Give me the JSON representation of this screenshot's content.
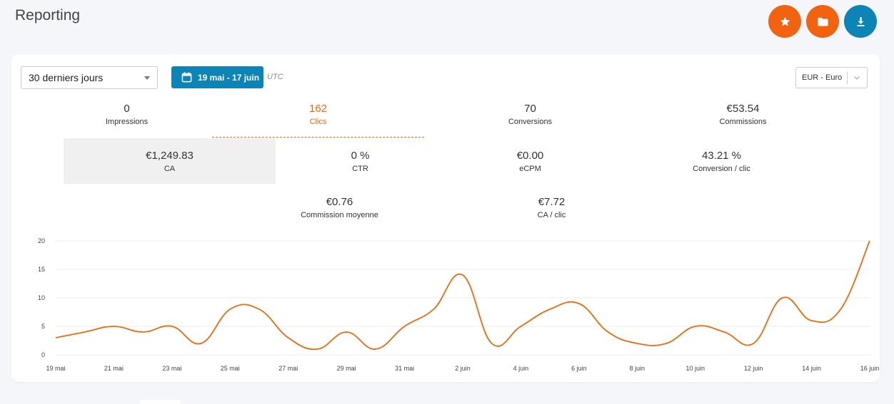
{
  "header": {
    "title": "Reporting"
  },
  "actions": [
    {
      "name": "favorite-button",
      "icon": "star-icon",
      "color": "#f26311"
    },
    {
      "name": "folder-button",
      "icon": "folder-icon",
      "color": "#f26311"
    },
    {
      "name": "download-button",
      "icon": "download-icon",
      "color": "#0c84b5"
    }
  ],
  "filters": {
    "period": "30 derniers jours",
    "date_range": "19 mai - 17 juin",
    "timezone": "UTC",
    "currency": "EUR - Euro"
  },
  "metrics": [
    {
      "value": "0",
      "label": "Impressions"
    },
    {
      "value": "162",
      "label": "Clics"
    },
    {
      "value": "70",
      "label": "Conversions"
    },
    {
      "value": "€53.54",
      "label": "Commissions"
    },
    {
      "value": "€1,249.83",
      "label": "CA"
    },
    {
      "value": "0 %",
      "label": "CTR"
    },
    {
      "value": "€0.00",
      "label": "eCPM"
    },
    {
      "value": "43.21 %",
      "label": "Conversion / clic"
    },
    {
      "value": "€0.76",
      "label": "Commission moyenne"
    },
    {
      "value": "€7.72",
      "label": "CA / clic"
    }
  ],
  "colors": {
    "accent": "#f0680a",
    "primary": "#0c84b5",
    "grid": "#ececec"
  },
  "chart_data": {
    "type": "line",
    "title": "",
    "xlabel": "",
    "ylabel": "",
    "ylim": [
      0,
      20
    ],
    "yticks": [
      0,
      5,
      10,
      15,
      20
    ],
    "grid": true,
    "x": [
      "19 mai",
      "20 mai",
      "21 mai",
      "22 mai",
      "23 mai",
      "24 mai",
      "25 mai",
      "26 mai",
      "27 mai",
      "28 mai",
      "29 mai",
      "30 mai",
      "31 mai",
      "1 juin",
      "2 juin",
      "3 juin",
      "4 juin",
      "5 juin",
      "6 juin",
      "7 juin",
      "8 juin",
      "9 juin",
      "10 juin",
      "11 juin",
      "12 juin",
      "13 juin",
      "14 juin",
      "15 juin",
      "16 juin"
    ],
    "xtick_labels": [
      "19 mai",
      "21 mai",
      "23 mai",
      "25 mai",
      "27 mai",
      "29 mai",
      "31 mai",
      "2 juin",
      "4 juin",
      "6 juin",
      "8 juin",
      "10 juin",
      "12 juin",
      "14 juin",
      "16 juin"
    ],
    "series": [
      {
        "name": "",
        "color": "#f0680a",
        "values": [
          3,
          4,
          5,
          4,
          5,
          2,
          8,
          8,
          3,
          1,
          4,
          1,
          5,
          8,
          14,
          2,
          5,
          8,
          9,
          4,
          2,
          2,
          5,
          4,
          2,
          10,
          6,
          8,
          20
        ]
      }
    ]
  }
}
